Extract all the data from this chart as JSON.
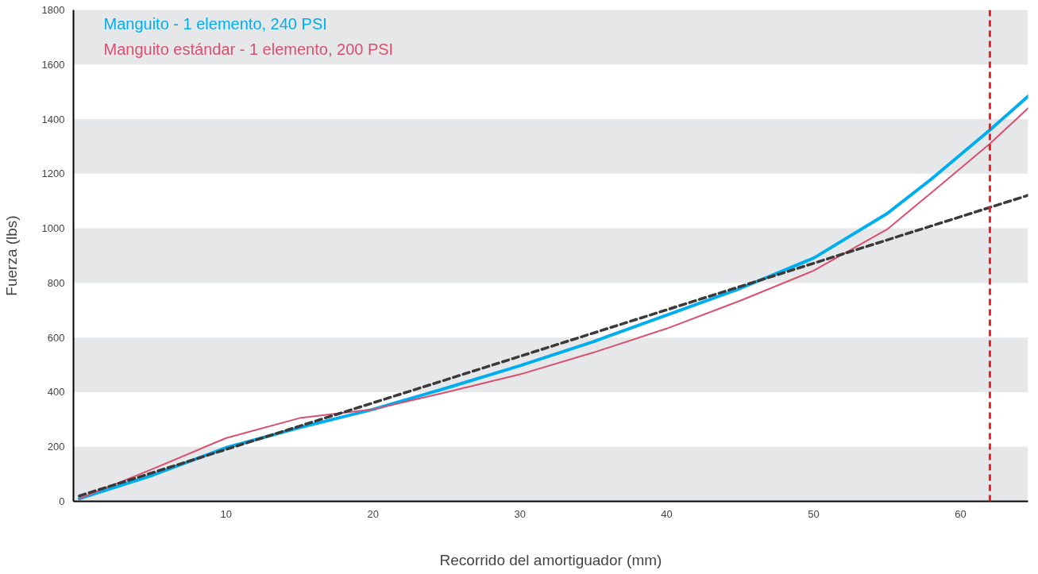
{
  "chart_data": {
    "type": "line",
    "xlabel": "Recorrido del amortiguador (mm)",
    "ylabel": "Fuerza (lbs)",
    "xlim": [
      -0.4,
      64.6
    ],
    "ylim": [
      0,
      1800
    ],
    "xticks": [
      10,
      20,
      30,
      40,
      50,
      60
    ],
    "yticks": [
      0,
      200,
      400,
      600,
      800,
      1000,
      1200,
      1400,
      1600,
      1800
    ],
    "grid": false,
    "legend": "top left",
    "series": [
      {
        "name": "Manguito - 1 elemento, 240 PSI",
        "color": "#00aeef",
        "x": [
          0,
          5,
          10,
          15,
          20,
          25,
          30,
          35,
          40,
          45,
          50,
          55,
          58,
          62,
          64.6
        ],
        "values": [
          10,
          96,
          197,
          270,
          337,
          415,
          497,
          585,
          682,
          780,
          891,
          1054,
          1180,
          1360,
          1484
        ]
      },
      {
        "name": "Manguito estándar - 1 elemento, 200 PSI",
        "color": "#d9506e",
        "x": [
          0,
          5,
          10,
          15,
          20,
          25,
          30,
          35,
          40,
          45,
          50,
          55,
          58,
          62,
          64.6
        ],
        "values": [
          10,
          119,
          232,
          305,
          337,
          400,
          465,
          545,
          633,
          735,
          845,
          996,
          1130,
          1310,
          1440
        ]
      },
      {
        "color": "#3a3a3a",
        "line_style": "dashed",
        "x": [
          0,
          64.6
        ],
        "values": [
          20,
          1121
        ]
      }
    ],
    "ref_lines": [
      {
        "axis": "x",
        "value": 62,
        "color": "#e8202a",
        "line_style": "dashed"
      }
    ],
    "bands": [
      {
        "axis": "y",
        "from": 0,
        "to": 200,
        "color": "#e6e7e8"
      },
      {
        "axis": "y",
        "from": 400,
        "to": 600,
        "color": "#e6e7e8"
      },
      {
        "axis": "y",
        "from": 800,
        "to": 1000,
        "color": "#e6e7e8"
      },
      {
        "axis": "y",
        "from": 1200,
        "to": 1400,
        "color": "#e6e7e8"
      },
      {
        "axis": "y",
        "from": 1600,
        "to": 1800,
        "color": "#e6e7e8"
      }
    ]
  }
}
